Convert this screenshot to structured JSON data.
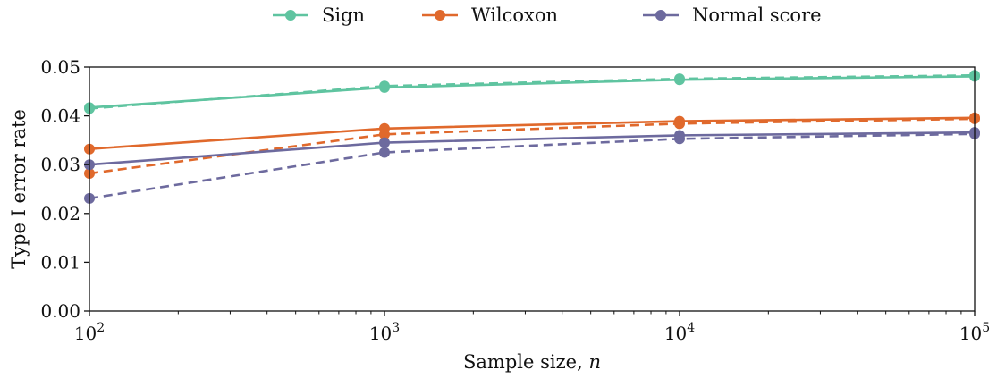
{
  "chart_data": {
    "type": "line",
    "xlabel": "Sample size, n",
    "ylabel": "Type I error rate",
    "x_scale": "log",
    "x": [
      100,
      1000,
      10000,
      100000
    ],
    "x_tick_labels": [
      {
        "base": "10",
        "exp": "2"
      },
      {
        "base": "10",
        "exp": "3"
      },
      {
        "base": "10",
        "exp": "4"
      },
      {
        "base": "10",
        "exp": "5"
      }
    ],
    "xlim": [
      100,
      100000
    ],
    "ylim": [
      0,
      0.05
    ],
    "y_ticks": [
      0,
      0.01,
      0.02,
      0.03,
      0.04,
      0.05
    ],
    "y_tick_labels": [
      "0.00",
      "0.01",
      "0.02",
      "0.03",
      "0.04",
      "0.05"
    ],
    "grid": false,
    "legend": {
      "placement": "top-center",
      "entries": [
        "Sign",
        "Wilcoxon",
        "Normal score"
      ]
    },
    "series": [
      {
        "name": "Sign",
        "color": "#5fc4a0",
        "style": "solid",
        "values": [
          0.0417,
          0.0458,
          0.0474,
          0.0481
        ]
      },
      {
        "name": "Sign",
        "color": "#5fc4a0",
        "style": "dashed",
        "values": [
          0.0415,
          0.0461,
          0.0476,
          0.0483
        ]
      },
      {
        "name": "Wilcoxon",
        "color": "#e0692c",
        "style": "solid",
        "values": [
          0.0332,
          0.0374,
          0.0389,
          0.0396
        ]
      },
      {
        "name": "Wilcoxon",
        "color": "#e0692c",
        "style": "dashed",
        "values": [
          0.0282,
          0.0362,
          0.0384,
          0.0394
        ]
      },
      {
        "name": "Normal score",
        "color": "#6d6a9e",
        "style": "solid",
        "values": [
          0.03,
          0.0345,
          0.036,
          0.0366
        ]
      },
      {
        "name": "Normal score",
        "color": "#6d6a9e",
        "style": "dashed",
        "values": [
          0.0231,
          0.0325,
          0.0353,
          0.0363
        ]
      }
    ]
  }
}
